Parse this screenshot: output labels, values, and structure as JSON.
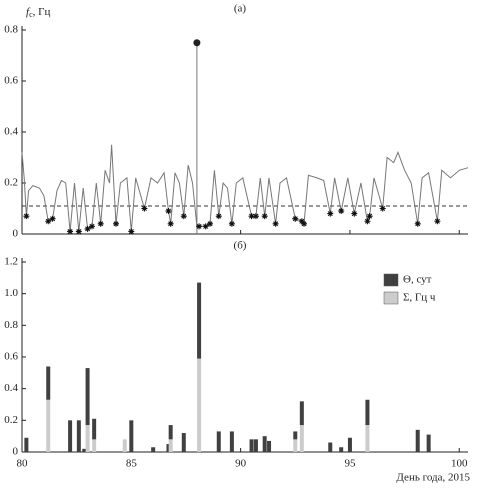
{
  "chart_data": [
    {
      "type": "line",
      "panel_label": "(а)",
      "y_label_symbol": "f",
      "y_label_sub": "c",
      "y_label_unit": ", Гц",
      "xlim": [
        80,
        100.4
      ],
      "xticks": [
        80,
        85,
        90,
        95,
        100
      ],
      "ylim": [
        0,
        0.8
      ],
      "yticks": [
        0,
        0.2,
        0.4,
        0.6,
        0.8
      ],
      "color": "#777777",
      "marker_color": "#111111",
      "threshold": 0.11,
      "x": [
        80.0,
        80.1,
        80.2,
        80.3,
        80.5,
        80.8,
        81.0,
        81.2,
        81.4,
        81.6,
        81.8,
        82.0,
        82.2,
        82.4,
        82.6,
        82.8,
        83.0,
        83.2,
        83.4,
        83.6,
        83.8,
        84.0,
        84.1,
        84.3,
        84.5,
        84.8,
        85.0,
        85.2,
        85.6,
        85.9,
        86.2,
        86.5,
        86.7,
        86.8,
        87.0,
        87.2,
        87.4,
        87.6,
        87.8,
        88.0,
        88.1,
        88.4,
        88.6,
        88.8,
        89.0,
        89.2,
        89.4,
        89.6,
        89.8,
        90.1,
        90.5,
        90.7,
        90.9,
        91.1,
        91.3,
        91.6,
        91.8,
        92.1,
        92.5,
        92.8,
        92.9,
        93.1,
        93.5,
        93.8,
        94.1,
        94.3,
        94.6,
        94.9,
        95.2,
        95.5,
        95.8,
        95.9,
        96.1,
        96.5,
        96.7,
        97.0,
        97.2,
        97.5,
        97.8,
        98.1,
        98.3,
        98.6,
        99.0,
        99.2,
        99.6,
        100.0,
        100.4
      ],
      "values": [
        0.32,
        0.22,
        0.07,
        0.17,
        0.19,
        0.18,
        0.15,
        0.05,
        0.06,
        0.17,
        0.21,
        0.2,
        0.01,
        0.2,
        0.01,
        0.18,
        0.02,
        0.03,
        0.2,
        0.04,
        0.25,
        0.2,
        0.35,
        0.04,
        0.2,
        0.22,
        0.01,
        0.22,
        0.1,
        0.22,
        0.2,
        0.24,
        0.09,
        0.04,
        0.24,
        0.2,
        0.07,
        0.27,
        0.2,
        0.03,
        0.03,
        0.03,
        0.04,
        0.25,
        0.07,
        0.2,
        0.18,
        0.04,
        0.2,
        0.22,
        0.07,
        0.07,
        0.22,
        0.07,
        0.22,
        0.04,
        0.2,
        0.22,
        0.06,
        0.05,
        0.04,
        0.23,
        0.22,
        0.21,
        0.08,
        0.22,
        0.09,
        0.22,
        0.08,
        0.2,
        0.05,
        0.07,
        0.22,
        0.1,
        0.3,
        0.28,
        0.32,
        0.25,
        0.2,
        0.04,
        0.22,
        0.24,
        0.05,
        0.25,
        0.22,
        0.25,
        0.26
      ],
      "markers": {
        "x": [
          80.2,
          81.2,
          81.4,
          82.2,
          82.6,
          83.0,
          83.2,
          83.6,
          84.3,
          85.0,
          85.6,
          86.7,
          86.8,
          87.4,
          88.1,
          88.4,
          88.6,
          89.0,
          89.6,
          90.5,
          90.7,
          91.1,
          91.6,
          92.5,
          92.8,
          92.9,
          94.1,
          94.6,
          95.2,
          95.8,
          95.9,
          96.5,
          98.1,
          99.0
        ],
        "values": [
          0.07,
          0.05,
          0.06,
          0.01,
          0.01,
          0.02,
          0.03,
          0.04,
          0.04,
          0.01,
          0.1,
          0.09,
          0.04,
          0.07,
          0.03,
          0.03,
          0.04,
          0.07,
          0.04,
          0.07,
          0.07,
          0.07,
          0.04,
          0.06,
          0.05,
          0.04,
          0.08,
          0.09,
          0.08,
          0.05,
          0.07,
          0.1,
          0.04,
          0.05
        ]
      },
      "spike": {
        "x": 88.0,
        "value": 0.75
      }
    },
    {
      "type": "bar",
      "panel_label": "(б)",
      "x_label": "День года, 2015",
      "xlim": [
        80,
        100.4
      ],
      "xticks": [
        80,
        85,
        90,
        95,
        100
      ],
      "ylim": [
        0,
        1.2
      ],
      "yticks": [
        0,
        0.2,
        0.4,
        0.6,
        0.8,
        {
          "value": 1.0,
          "label": "1.0"
        },
        1.2
      ],
      "x": [
        80.2,
        81.2,
        82.2,
        82.6,
        82.85,
        83.0,
        83.3,
        84.7,
        85.0,
        86.0,
        86.7,
        86.8,
        87.4,
        88.1,
        89.0,
        89.6,
        90.5,
        90.7,
        91.1,
        91.3,
        92.5,
        92.8,
        94.1,
        94.6,
        95.0,
        95.8,
        98.1,
        98.6
      ],
      "series": [
        {
          "name": "Θ, сут",
          "color": "#404040",
          "values": [
            0.09,
            0.21,
            0.2,
            0.2,
            0.02,
            0.36,
            0.13,
            0,
            0.2,
            0.03,
            0.05,
            0.09,
            0.12,
            0.48,
            0.13,
            0.13,
            0.08,
            0.08,
            0.1,
            0.07,
            0.05,
            0.15,
            0.06,
            0.03,
            0.09,
            0.16,
            0.14,
            0.11
          ]
        },
        {
          "name": "Σ, Гц ч",
          "color": "#cccccc",
          "values": [
            0,
            0.33,
            0,
            0,
            0,
            0.17,
            0.08,
            0.08,
            0,
            0,
            0,
            0.08,
            0,
            0.59,
            0,
            0,
            0,
            0,
            0,
            0,
            0.08,
            0.17,
            0,
            0,
            0,
            0.17,
            0,
            0
          ]
        }
      ]
    }
  ]
}
